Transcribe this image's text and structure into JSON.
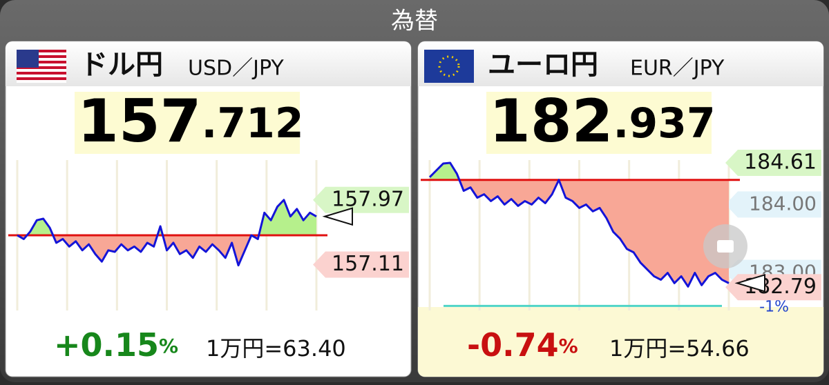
{
  "header": {
    "title": "為替"
  },
  "panels": [
    {
      "name": "ドル円",
      "pair": "USD／JPY",
      "price_int": "157",
      "price_dec": ".712",
      "change": "+0.15",
      "change_unit": "%",
      "conversion": "1万円=63.40",
      "chart_data": {
        "type": "line",
        "color": "#1414d8",
        "ylim": [
          156.5,
          158.5
        ],
        "baseline": 157.5,
        "high": 157.97,
        "low": 157.11,
        "yticks": [],
        "values": [
          157.5,
          157.45,
          157.55,
          157.7,
          157.72,
          157.6,
          157.4,
          157.45,
          157.35,
          157.42,
          157.3,
          157.38,
          157.25,
          157.15,
          157.3,
          157.28,
          157.38,
          157.3,
          157.35,
          157.28,
          157.4,
          157.35,
          157.62,
          157.3,
          157.4,
          157.25,
          157.3,
          157.2,
          157.35,
          157.28,
          157.38,
          157.3,
          157.2,
          157.4,
          157.1,
          157.3,
          157.5,
          157.45,
          157.8,
          157.7,
          157.88,
          157.97,
          157.75,
          157.85,
          157.7,
          157.8,
          157.75
        ]
      }
    },
    {
      "name": "ユーロ円",
      "pair": "EUR／JPY",
      "price_int": "182",
      "price_dec": ".937",
      "change": "-0.74",
      "change_unit": "%",
      "conversion": "1万円=54.66",
      "chart_data": {
        "type": "line",
        "color": "#1414d8",
        "ylim": [
          182.45,
          184.65
        ],
        "baseline": 184.36,
        "high": 184.61,
        "low": 182.79,
        "yticks": [
          {
            "value": 184,
            "label": "184.00"
          },
          {
            "value": 183,
            "label": "183.00"
          }
        ],
        "lower_line": {
          "value": -1,
          "label": "-1%"
        },
        "values": [
          184.4,
          184.5,
          184.6,
          184.61,
          184.45,
          184.2,
          184.25,
          184.1,
          184.15,
          184.05,
          184.12,
          184.0,
          184.08,
          183.98,
          184.05,
          184.0,
          184.1,
          184.02,
          184.15,
          184.36,
          184.1,
          184.05,
          183.95,
          184.0,
          183.9,
          183.95,
          183.8,
          183.6,
          183.5,
          183.35,
          183.3,
          183.15,
          183.05,
          182.95,
          182.9,
          183.0,
          182.85,
          182.95,
          182.8,
          183.0,
          182.82,
          182.95,
          183.0,
          182.9,
          182.85
        ]
      }
    }
  ]
}
